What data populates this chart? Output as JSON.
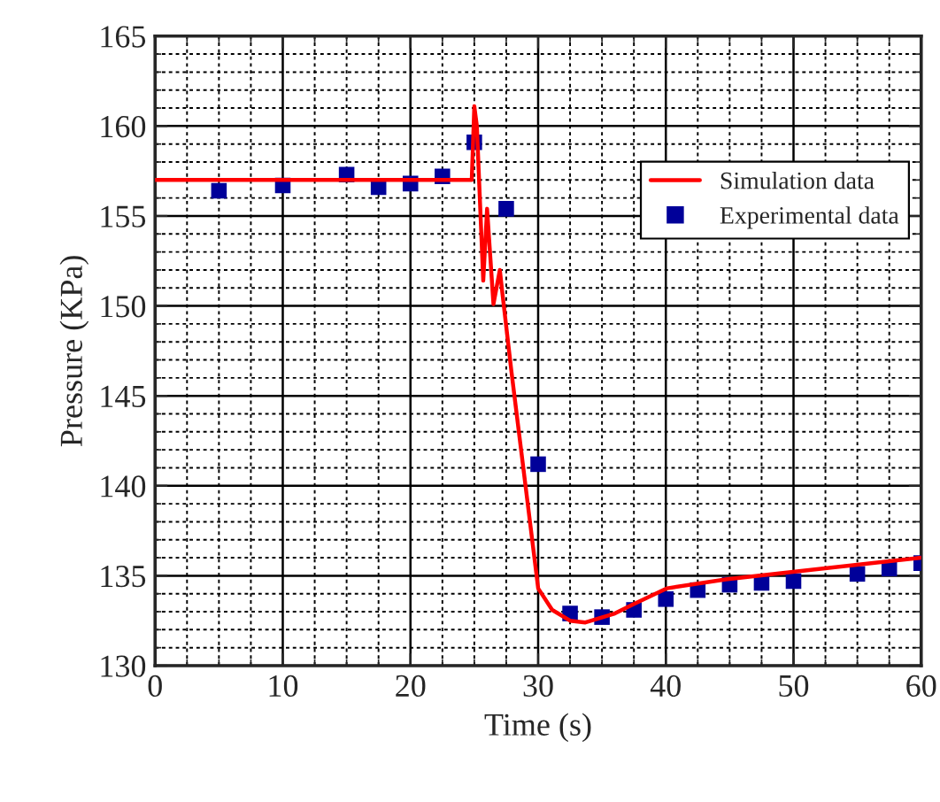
{
  "chart_data": {
    "type": "line",
    "xlabel": "Time (s)",
    "ylabel": "Pressure (KPa)",
    "xlim": [
      0,
      60
    ],
    "ylim": [
      130,
      165
    ],
    "xticks": [
      0,
      10,
      20,
      30,
      40,
      50,
      60
    ],
    "yticks": [
      130,
      135,
      140,
      145,
      150,
      155,
      160,
      165
    ],
    "grid": true,
    "legend": "top right",
    "series": [
      {
        "name": "Simulation data",
        "color": "#ff0000",
        "marker": "none",
        "line_style": "solid",
        "x": [
          0,
          24.8,
          25.0,
          25.2,
          25.7,
          26.0,
          26.5,
          27.0,
          27.2,
          27.9,
          30.0,
          31.1,
          32.5,
          33.7,
          36.0,
          37.4,
          40.1,
          44.7,
          49.8,
          60
        ],
        "values": [
          157.0,
          157.0,
          161.1,
          160.0,
          151.4,
          155.4,
          150.1,
          152.0,
          150.7,
          146.4,
          134.3,
          133.1,
          132.5,
          132.4,
          132.9,
          133.4,
          134.3,
          134.8,
          135.2,
          136.0
        ]
      },
      {
        "name": "Experimental data",
        "type": "scatter",
        "color": "#000099",
        "marker": "square",
        "x": [
          5,
          10,
          15,
          17.5,
          20,
          22.5,
          25,
          27.5,
          30,
          32.5,
          35,
          37.5,
          40,
          42.5,
          45,
          47.5,
          50,
          55,
          57.5,
          60
        ],
        "values": [
          156.4,
          156.7,
          157.3,
          156.6,
          156.8,
          157.2,
          159.1,
          155.4,
          141.2,
          132.9,
          132.7,
          133.1,
          133.7,
          134.2,
          134.5,
          134.6,
          134.7,
          135.1,
          135.4,
          135.7
        ]
      }
    ]
  }
}
